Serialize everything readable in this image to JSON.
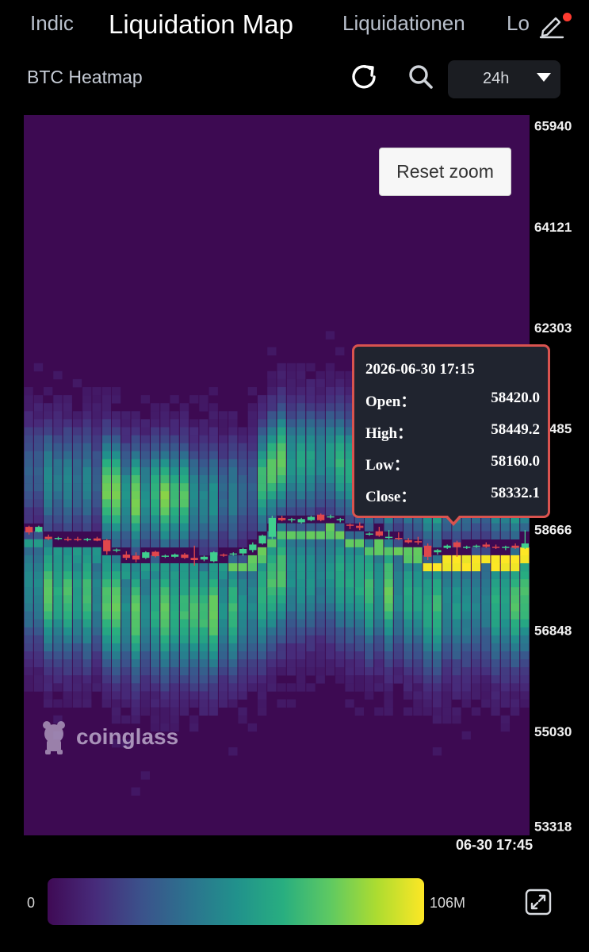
{
  "header": {
    "tabs": [
      {
        "label": "Indic",
        "active": false
      },
      {
        "label": "Liquidation Map",
        "active": true
      },
      {
        "label": "Liquidationen",
        "active": false
      },
      {
        "label": "Lo",
        "active": false
      }
    ],
    "edit_icon": "pencil-icon",
    "notification_dot_color": "#ff3b30"
  },
  "toolbar": {
    "subtitle": "BTC Heatmap",
    "refresh_icon": "refresh-icon",
    "search_icon": "search-icon",
    "range_value": "24h",
    "range_caret_icon": "caret-down-icon"
  },
  "chart_data": {
    "type": "heatmap",
    "y_ticks": [
      "65940",
      "64121",
      "62303",
      "60485",
      "58666",
      "56848",
      "55030",
      "53318"
    ],
    "ylim": [
      53140,
      66120
    ],
    "x_label_last": "06-30 17:45",
    "watermark": "coinglass",
    "reset_zoom_label": "Reset zoom",
    "colorscale": [
      "#3f0a55",
      "#472b7a",
      "#3b528b",
      "#2c728e",
      "#21918c",
      "#28ae80",
      "#5ec962",
      "#addc30",
      "#fde725"
    ],
    "background_color": "#3d0a52",
    "candles": [
      [
        58700,
        58720,
        58560,
        58600
      ],
      [
        58610,
        58720,
        58600,
        58700
      ],
      [
        58520,
        58560,
        58460,
        58480
      ],
      [
        58490,
        58520,
        58460,
        58500
      ],
      [
        58480,
        58520,
        58440,
        58460
      ],
      [
        58480,
        58520,
        58440,
        58460
      ],
      [
        58470,
        58500,
        58440,
        58480
      ],
      [
        58490,
        58520,
        58440,
        58450
      ],
      [
        58460,
        58480,
        58200,
        58260
      ],
      [
        58280,
        58310,
        58240,
        58290
      ],
      [
        58200,
        58260,
        58100,
        58140
      ],
      [
        58180,
        58240,
        58060,
        58110
      ],
      [
        58140,
        58260,
        58120,
        58240
      ],
      [
        58250,
        58270,
        58150,
        58170
      ],
      [
        58170,
        58200,
        58140,
        58180
      ],
      [
        58160,
        58220,
        58140,
        58200
      ],
      [
        58200,
        58230,
        58120,
        58140
      ],
      [
        58140,
        58360,
        58000,
        58100
      ],
      [
        58110,
        58180,
        58080,
        58160
      ],
      [
        58080,
        58260,
        58060,
        58240
      ],
      [
        58200,
        58220,
        58160,
        58180
      ],
      [
        58200,
        58240,
        58180,
        58220
      ],
      [
        58220,
        58320,
        58180,
        58300
      ],
      [
        58280,
        58420,
        58240,
        58380
      ],
      [
        58400,
        58560,
        58380,
        58540
      ],
      [
        58520,
        58900,
        58480,
        58860
      ],
      [
        58860,
        58900,
        58800,
        58820
      ],
      [
        58820,
        58860,
        58780,
        58840
      ],
      [
        58780,
        58860,
        58760,
        58840
      ],
      [
        58820,
        58900,
        58800,
        58880
      ],
      [
        58920,
        58940,
        58800,
        58820
      ],
      [
        58880,
        58920,
        58850,
        58890
      ],
      [
        58820,
        58860,
        58780,
        58840
      ],
      [
        58740,
        58760,
        58660,
        58720
      ],
      [
        58720,
        58780,
        58640,
        58680
      ],
      [
        58560,
        58600,
        58540,
        58580
      ],
      [
        58620,
        58700,
        58520,
        58540
      ],
      [
        58500,
        58640,
        58480,
        58520
      ],
      [
        58500,
        58600,
        58460,
        58480
      ],
      [
        58460,
        58500,
        58400,
        58420
      ],
      [
        58440,
        58520,
        58380,
        58420
      ],
      [
        58360,
        58400,
        58100,
        58160
      ],
      [
        58240,
        58300,
        58200,
        58280
      ],
      [
        58320,
        58380,
        58300,
        58360
      ],
      [
        58420,
        58449.2,
        58160,
        58332.1
      ],
      [
        58320,
        58360,
        58300,
        58340
      ],
      [
        58340,
        58380,
        58320,
        58360
      ],
      [
        58380,
        58420,
        58320,
        58340
      ],
      [
        58340,
        58380,
        58300,
        58320
      ],
      [
        58320,
        58360,
        58280,
        58340
      ],
      [
        58360,
        58400,
        58300,
        58320
      ],
      [
        58320,
        58640,
        58300,
        58400
      ]
    ],
    "tooltip": {
      "time": "2026-06-30 17:15",
      "rows": [
        {
          "label": "Open：",
          "value": "58420.0"
        },
        {
          "label": "High：",
          "value": "58449.2"
        },
        {
          "label": "Low：",
          "value": "58160.0"
        },
        {
          "label": "Close：",
          "value": "58332.1"
        }
      ]
    },
    "colorbar": {
      "min_label": "0",
      "max_label": "106M"
    },
    "up_color": "#3fcf8e",
    "down_color": "#e0474c"
  },
  "footer": {
    "expand_icon": "expand-icon"
  }
}
